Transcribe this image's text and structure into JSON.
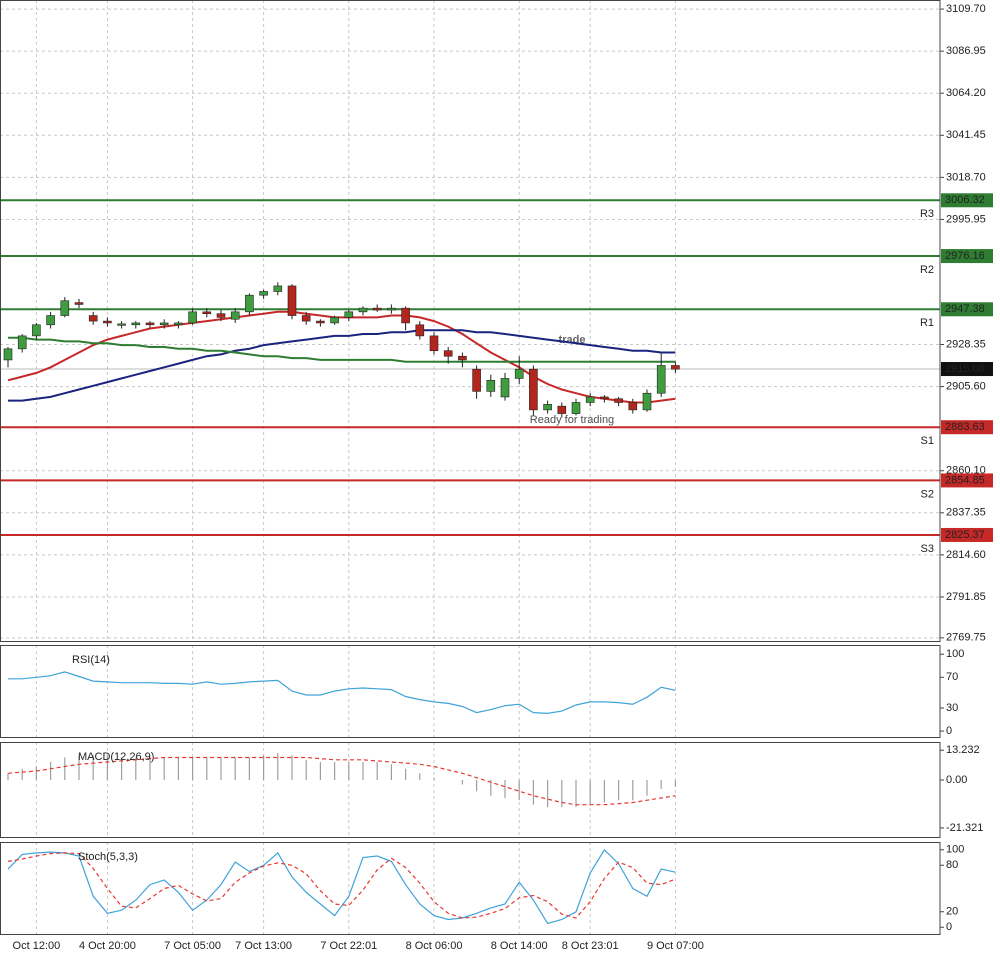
{
  "chart_data": [
    {
      "type": "candlestick",
      "categories": [
        null,
        null,
        "Oct 12:00",
        null,
        null,
        null,
        null,
        "4 Oct 20:00",
        null,
        null,
        null,
        null,
        null,
        "7 Oct 05:00",
        null,
        null,
        null,
        null,
        "7 Oct 13:00",
        null,
        null,
        null,
        null,
        null,
        "7 Oct 22:01",
        null,
        null,
        null,
        null,
        null,
        "8 Oct 06:00",
        null,
        null,
        null,
        null,
        null,
        "8 Oct 14:00",
        null,
        null,
        null,
        null,
        "8 Oct 23:01",
        null,
        null,
        null,
        null,
        null,
        "9 Oct 07:00"
      ],
      "candles": [
        [
          2920,
          2927,
          2916,
          2926
        ],
        [
          2926,
          2934,
          2924,
          2933
        ],
        [
          2933,
          2940,
          2931,
          2939
        ],
        [
          2939,
          2946,
          2937,
          2944
        ],
        [
          2944,
          2954,
          2943,
          2952
        ],
        [
          2951,
          2953,
          2948,
          2950
        ],
        [
          2944,
          2946,
          2939,
          2941
        ],
        [
          2941,
          2943,
          2938,
          2940
        ],
        [
          2939,
          2941,
          2937,
          2939.5
        ],
        [
          2939,
          2941,
          2937,
          2940
        ],
        [
          2940,
          2941,
          2937,
          2939
        ],
        [
          2939,
          2942,
          2937,
          2940
        ],
        [
          2939,
          2941,
          2937,
          2940
        ],
        [
          2940,
          2948,
          2939,
          2946
        ],
        [
          2946,
          2948,
          2943,
          2945
        ],
        [
          2945,
          2947,
          2941,
          2943
        ],
        [
          2942,
          2948,
          2940,
          2946
        ],
        [
          2946,
          2956,
          2944,
          2955
        ],
        [
          2955,
          2958,
          2953,
          2957
        ],
        [
          2957,
          2962,
          2955,
          2960
        ],
        [
          2960,
          2961,
          2942,
          2944
        ],
        [
          2944,
          2946,
          2939,
          2941
        ],
        [
          2941,
          2942,
          2938,
          2940
        ],
        [
          2940,
          2944,
          2939,
          2943
        ],
        [
          2943,
          2947,
          2941,
          2946
        ],
        [
          2946,
          2949,
          2944,
          2948
        ],
        [
          2948,
          2950,
          2946,
          2947
        ],
        [
          2947,
          2950,
          2945,
          2948
        ],
        [
          2948,
          2949,
          2936,
          2940
        ],
        [
          2939,
          2941,
          2931,
          2933
        ],
        [
          2933,
          2935,
          2923,
          2925
        ],
        [
          2925,
          2927,
          2918,
          2922
        ],
        [
          2922,
          2924,
          2916,
          2920
        ],
        [
          2915,
          2917,
          2899,
          2903
        ],
        [
          2903,
          2912,
          2900,
          2909
        ],
        [
          2900,
          2913,
          2898,
          2910
        ],
        [
          2910,
          2922,
          2907,
          2915
        ],
        [
          2915,
          2917,
          2890,
          2893
        ],
        [
          2893,
          2898,
          2891,
          2896
        ],
        [
          2895,
          2897,
          2889,
          2891
        ],
        [
          2891,
          2899,
          2890,
          2897
        ],
        [
          2897,
          2902,
          2895,
          2900
        ],
        [
          2900,
          2901,
          2897,
          2899
        ],
        [
          2899,
          2900,
          2895,
          2897
        ],
        [
          2897,
          2899,
          2891,
          2893
        ],
        [
          2893,
          2904,
          2892,
          2902
        ],
        [
          2902,
          2924,
          2900,
          2917
        ],
        [
          2917,
          2919,
          2913,
          2915
        ]
      ],
      "up_color": "#3f9c3f",
      "down_color": "#b3261e",
      "series": [
        {
          "color": "#c62828",
          "values": [
            2909,
            2911,
            2913,
            2916,
            2920,
            2924,
            2928,
            2931,
            2933,
            2935,
            2937,
            2938,
            2939,
            2940,
            2941,
            2942,
            2943,
            2944,
            2945,
            2946,
            2946,
            2945,
            2944,
            2943,
            2943,
            2943,
            2943,
            2944,
            2944,
            2943,
            2941,
            2938,
            2934,
            2929,
            2924,
            2920,
            2916,
            2911,
            2907,
            2904,
            2902,
            2900,
            2899,
            2898,
            2897,
            2897,
            2898,
            2899
          ]
        },
        {
          "color": "#1a237e",
          "values": [
            2898,
            2898,
            2899,
            2900,
            2902,
            2904,
            2906,
            2908,
            2910,
            2912,
            2914,
            2916,
            2918,
            2920,
            2922,
            2923,
            2925,
            2926,
            2928,
            2929,
            2930,
            2931,
            2932,
            2933,
            2933,
            2934,
            2934,
            2935,
            2935,
            2936,
            2936,
            2936,
            2936,
            2935,
            2935,
            2934,
            2933,
            2932,
            2931,
            2930,
            2929,
            2928,
            2927,
            2926,
            2925,
            2925,
            2924,
            2924
          ]
        },
        {
          "color": "#2e7d32",
          "values": [
            2932,
            2932,
            2931,
            2931,
            2930,
            2930,
            2929,
            2929,
            2928,
            2928,
            2927,
            2927,
            2926,
            2926,
            2925,
            2925,
            2924,
            2923,
            2922,
            2922,
            2921,
            2921,
            2920,
            2920,
            2920,
            2920,
            2920,
            2920,
            2919,
            2919,
            2919,
            2919,
            2919,
            2919,
            2919,
            2919,
            2919,
            2919,
            2919,
            2919,
            2919,
            2919,
            2919,
            2919,
            2919,
            2919,
            2919,
            2919
          ]
        }
      ],
      "levels": [
        {
          "name": "R3",
          "value": 3006.32,
          "color": "#2e7d32"
        },
        {
          "name": "R2",
          "value": 2976.16,
          "color": "#2e7d32"
        },
        {
          "name": "R1",
          "value": 2947.38,
          "color": "#2e7d32"
        },
        {
          "name": "S1",
          "value": 2883.63,
          "color": "#c62828"
        },
        {
          "name": "S2",
          "value": 2854.85,
          "color": "#c62828"
        },
        {
          "name": "S3",
          "value": 2825.37,
          "color": "#c62828"
        }
      ],
      "current_price": 2915.08,
      "watermark": {
        "brand": "trade",
        "tagline": "Ready for trading"
      },
      "ylim": [
        2767.5,
        3114.6
      ],
      "yticks": [
        {
          "value": 3109.7,
          "label": "3109.70"
        },
        3086.95,
        {
          "value": 3064.2,
          "label": "3064.20"
        },
        3041.45,
        {
          "value": 3018.7,
          "label": "3018.70"
        },
        2995.95,
        2928.35,
        {
          "value": 2905.6,
          "label": "2905.60"
        },
        {
          "value": 2860.1,
          "label": "2860.10"
        },
        2837.35,
        {
          "value": 2814.6,
          "label": "2814.60"
        },
        2791.85,
        2769.75
      ],
      "grid": true
    },
    {
      "type": "line",
      "title": "RSI(14)",
      "ylim": [
        -9,
        112
      ],
      "yticks": [
        100,
        70,
        30,
        0
      ],
      "series": [
        {
          "color": "#3fa3d9",
          "values": [
            68,
            68,
            70,
            72,
            77,
            71,
            65,
            64,
            63,
            63,
            63,
            62,
            62,
            61,
            64,
            61,
            62,
            64,
            65,
            66,
            52,
            47,
            47,
            52,
            55,
            56,
            55,
            54,
            45,
            41,
            38,
            36,
            32,
            24,
            28,
            33,
            35,
            24,
            23,
            26,
            34,
            38,
            38,
            37,
            35,
            44,
            57,
            53
          ]
        }
      ]
    },
    {
      "type": "macd",
      "title": "MACD(12,26,9)",
      "ylim": [
        -25.8,
        16.9
      ],
      "yticks": [
        13.232,
        {
          "value": 0,
          "label": "0.00"
        },
        -21.321
      ],
      "histogram": {
        "color": "#9e9e9e",
        "values": [
          3,
          5,
          6,
          8,
          10,
          11,
          11,
          11,
          10,
          10,
          10,
          10,
          10,
          10,
          10,
          10,
          10,
          10,
          11,
          12,
          11,
          9,
          8,
          8,
          8,
          8,
          8,
          7,
          5,
          3,
          1,
          0,
          -2,
          -5,
          -7,
          -8,
          -9,
          -11,
          -12,
          -12,
          -12,
          -11,
          -10,
          -9,
          -9,
          -7,
          -4,
          -3
        ]
      },
      "signal": {
        "color": "#e53935",
        "values": [
          3,
          3.5,
          4,
          5,
          6,
          7,
          7.5,
          8,
          8.5,
          9,
          9.5,
          10,
          10,
          10,
          10,
          10,
          10,
          10,
          10,
          10,
          10,
          10,
          9.5,
          9,
          9,
          9,
          8.5,
          8,
          7.5,
          7,
          6,
          4.5,
          3,
          1,
          -1,
          -3,
          -5,
          -7,
          -8.5,
          -10,
          -11,
          -11,
          -11,
          -10.5,
          -10,
          -9,
          -8,
          -7
        ]
      }
    },
    {
      "type": "line",
      "title": "Stoch(5,3,3)",
      "ylim": [
        -10,
        110
      ],
      "yticks": [
        100,
        80,
        20,
        0
      ],
      "series": [
        {
          "color": "#3fa3d9",
          "values": [
            75,
            94,
            96,
            97,
            96,
            92,
            40,
            18,
            22,
            35,
            55,
            61,
            45,
            22,
            35,
            55,
            84,
            72,
            80,
            96,
            65,
            45,
            30,
            15,
            40,
            90,
            92,
            85,
            55,
            30,
            15,
            10,
            12,
            18,
            25,
            30,
            58,
            35,
            5,
            10,
            20,
            70,
            100,
            82,
            50,
            40,
            75,
            71
          ]
        },
        {
          "color": "#e53935",
          "dashed": true,
          "values": [
            85,
            88,
            92,
            95,
            96,
            95,
            76,
            50,
            27,
            25,
            37,
            50,
            54,
            43,
            34,
            37,
            58,
            70,
            79,
            83,
            80,
            69,
            47,
            30,
            28,
            48,
            74,
            89,
            77,
            57,
            33,
            18,
            12,
            13,
            18,
            24,
            38,
            41,
            33,
            17,
            12,
            33,
            63,
            84,
            77,
            57,
            55,
            62
          ]
        }
      ]
    }
  ]
}
